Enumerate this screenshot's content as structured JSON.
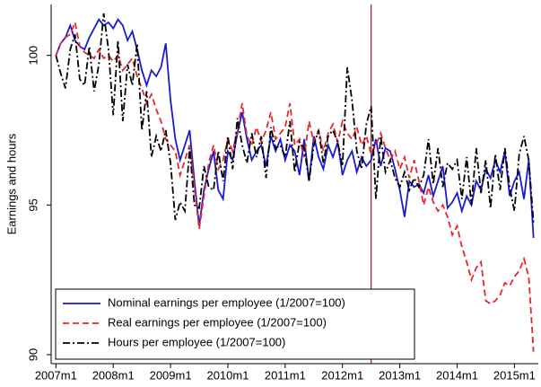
{
  "chart_data": {
    "type": "line",
    "y_label": "Earnings and hours",
    "x": [
      "2007m1",
      "2007m2",
      "2007m3",
      "2007m4",
      "2007m5",
      "2007m6",
      "2007m7",
      "2007m8",
      "2007m9",
      "2007m10",
      "2007m11",
      "2007m12",
      "2008m1",
      "2008m2",
      "2008m3",
      "2008m4",
      "2008m5",
      "2008m6",
      "2008m7",
      "2008m8",
      "2008m9",
      "2008m10",
      "2008m11",
      "2008m12",
      "2009m1",
      "2009m2",
      "2009m3",
      "2009m4",
      "2009m5",
      "2009m6",
      "2009m7",
      "2009m8",
      "2009m9",
      "2009m10",
      "2009m11",
      "2009m12",
      "2010m1",
      "2010m2",
      "2010m3",
      "2010m4",
      "2010m5",
      "2010m6",
      "2010m7",
      "2010m8",
      "2010m9",
      "2010m10",
      "2010m11",
      "2010m12",
      "2011m1",
      "2011m2",
      "2011m3",
      "2011m4",
      "2011m5",
      "2011m6",
      "2011m7",
      "2011m8",
      "2011m9",
      "2011m10",
      "2011m11",
      "2011m12",
      "2012m1",
      "2012m2",
      "2012m3",
      "2012m4",
      "2012m5",
      "2012m6",
      "2012m7",
      "2012m8",
      "2012m9",
      "2012m10",
      "2012m11",
      "2012m12",
      "2013m1",
      "2013m2",
      "2013m3",
      "2013m4",
      "2013m5",
      "2013m6",
      "2013m7",
      "2013m8",
      "2013m9",
      "2013m10",
      "2013m11",
      "2013m12",
      "2014m1",
      "2014m2",
      "2014m3",
      "2014m4",
      "2014m5",
      "2014m6",
      "2014m7",
      "2014m8",
      "2014m9",
      "2014m10",
      "2014m11",
      "2014m12",
      "2015m1",
      "2015m2",
      "2015m3",
      "2015m4",
      "2015m5"
    ],
    "series": [
      {
        "name": "Nominal earnings per employee (1/2007=100)",
        "color": "#1a1ad2",
        "dash": "solid",
        "values": [
          100,
          100.4,
          100.6,
          101,
          100.5,
          100.3,
          100.2,
          100.6,
          100.9,
          101.2,
          101,
          101.1,
          100.9,
          101.2,
          101.0,
          100.5,
          100.8,
          100.2,
          99.5,
          99.0,
          99.5,
          99.3,
          99.6,
          100.4,
          98.5,
          97.2,
          96.5,
          97.0,
          97.5,
          95.8,
          94.3,
          95.5,
          96.2,
          96.8,
          95.5,
          95.2,
          96.8,
          96.5,
          97.4,
          98.1,
          97.2,
          96.5,
          96.8,
          97.0,
          96.3,
          97.3,
          96.8,
          97.2,
          96.5,
          97.0,
          96.8,
          96.0,
          97.2,
          95.8,
          97.3,
          96.6,
          96.2,
          97.0,
          96.6,
          97.1,
          96.0,
          96.5,
          96.8,
          96.1,
          96.6,
          96.3,
          96.5,
          97.2,
          96.3,
          96.9,
          96.8,
          96.2,
          95.5,
          94.6,
          95.8,
          95.6,
          95.7,
          95.4,
          96.0,
          95.3,
          95.8,
          96.3,
          94.9,
          95.1,
          95.4,
          94.8,
          95.3,
          95.0,
          95.8,
          95.5,
          96.2,
          95.9,
          96.5,
          96.1,
          96.8,
          95.3,
          95.8,
          96.1,
          95.2,
          96.5,
          93.9
        ]
      },
      {
        "name": "Real earnings per employee (1/2007=100)",
        "color": "#e8262a",
        "dash": "dash",
        "values": [
          100,
          100.4,
          100.6,
          100.7,
          101.1,
          100.3,
          100.1,
          100.0,
          99.9,
          100.2,
          99.9,
          100.0,
          99.8,
          100.0,
          99.5,
          99.7,
          99.9,
          99.3,
          98.9,
          98.4,
          98.7,
          98.2,
          97.8,
          97.2,
          97.0,
          96.8,
          96.0,
          96.5,
          97.0,
          95.6,
          94.2,
          95.3,
          96.4,
          97.0,
          96.2,
          96.5,
          97.2,
          96.8,
          97.5,
          98.4,
          97.3,
          97.0,
          97.6,
          97.1,
          97.5,
          98.1,
          97.2,
          97.4,
          97.6,
          98.4,
          97.0,
          97.2,
          96.6,
          97.8,
          97.1,
          97.5,
          96.8,
          97.4,
          97.7,
          97.1,
          97.8,
          97.4,
          97.2,
          97.6,
          97.0,
          97.3,
          96.7,
          97.0,
          97.4,
          96.9,
          96.5,
          96.8,
          96.2,
          96.6,
          95.9,
          96.5,
          95.8,
          95.0,
          95.6,
          95.1,
          94.8,
          95.0,
          94.6,
          94.0,
          94.3,
          93.6,
          93.1,
          92.5,
          92.9,
          93.1,
          91.8,
          91.7,
          91.8,
          92.0,
          92.4,
          92.3,
          92.6,
          92.8,
          93.2,
          92.6,
          90.1
        ]
      },
      {
        "name": "Hours per employee (1/2007=100)",
        "color": "#000000",
        "dash": "dashdot",
        "values": [
          100,
          99.4,
          98.9,
          100.2,
          100.7,
          99.2,
          99.0,
          100.3,
          98.8,
          99.7,
          101.4,
          100.2,
          98.0,
          100.5,
          97.8,
          99.7,
          99.0,
          100.4,
          97.5,
          98.8,
          96.6,
          97.3,
          96.8,
          97.5,
          96.4,
          94.5,
          95.1,
          94.8,
          96.9,
          95.0,
          94.9,
          96.3,
          95.6,
          95.5,
          96.8,
          95.8,
          97.3,
          96.2,
          97.9,
          97.0,
          96.4,
          97.4,
          96.6,
          97.3,
          95.9,
          97.6,
          96.9,
          97.0,
          96.6,
          97.8,
          96.1,
          97.1,
          96.9,
          95.8,
          97.0,
          97.5,
          96.4,
          97.3,
          97.5,
          97.1,
          96.3,
          99.6,
          98.5,
          96.8,
          96.2,
          97.7,
          98.3,
          95.2,
          97.3,
          96.1,
          96.5,
          95.9,
          95.6,
          96.1,
          95.5,
          95.9,
          95.6,
          96.0,
          97.2,
          95.7,
          96.9,
          95.6,
          96.4,
          96.2,
          96.5,
          95.2,
          96.6,
          95.0,
          96.9,
          95.4,
          96.5,
          94.9,
          96.7,
          95.5,
          96.9,
          95.6,
          94.8,
          96.7,
          97.3,
          96.5,
          94.4
        ]
      }
    ],
    "xlim": [
      "2006m12",
      "2015m6"
    ],
    "xticks": [
      "2007m1",
      "2008m1",
      "2009m1",
      "2010m1",
      "2011m1",
      "2012m1",
      "2013m1",
      "2014m1",
      "2015m1"
    ],
    "ylim": [
      89.7,
      101.7
    ],
    "yticks": [
      90,
      95,
      100
    ],
    "vline": "2012m7",
    "vline_color": "#8b1a2f",
    "legend": "bottom-left"
  }
}
